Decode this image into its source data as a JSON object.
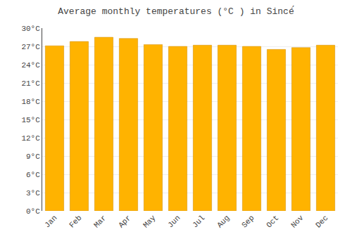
{
  "chart_data": {
    "type": "bar",
    "title": "Average monthly temperatures (°C ) in Sincé́",
    "categories": [
      "Jan",
      "Feb",
      "Mar",
      "Apr",
      "May",
      "Jun",
      "Jul",
      "Aug",
      "Sep",
      "Oct",
      "Nov",
      "Dec"
    ],
    "values": [
      27.1,
      27.8,
      28.5,
      28.3,
      27.3,
      27.0,
      27.2,
      27.2,
      27.0,
      26.5,
      26.8,
      27.2
    ],
    "color": "#FFB300",
    "ylim": [
      0,
      30
    ],
    "yticks": [
      {
        "value": 0,
        "label": "0°C"
      },
      {
        "value": 3,
        "label": "3°C"
      },
      {
        "value": 6,
        "label": "6°C"
      },
      {
        "value": 9,
        "label": "9°C"
      },
      {
        "value": 12,
        "label": "12°C"
      },
      {
        "value": 15,
        "label": "15°C"
      },
      {
        "value": 18,
        "label": "18°C"
      },
      {
        "value": 21,
        "label": "21°C"
      },
      {
        "value": 24,
        "label": "24°C"
      },
      {
        "value": 27,
        "label": "27°C"
      },
      {
        "value": 30,
        "label": "30°C"
      }
    ],
    "grid": true
  }
}
